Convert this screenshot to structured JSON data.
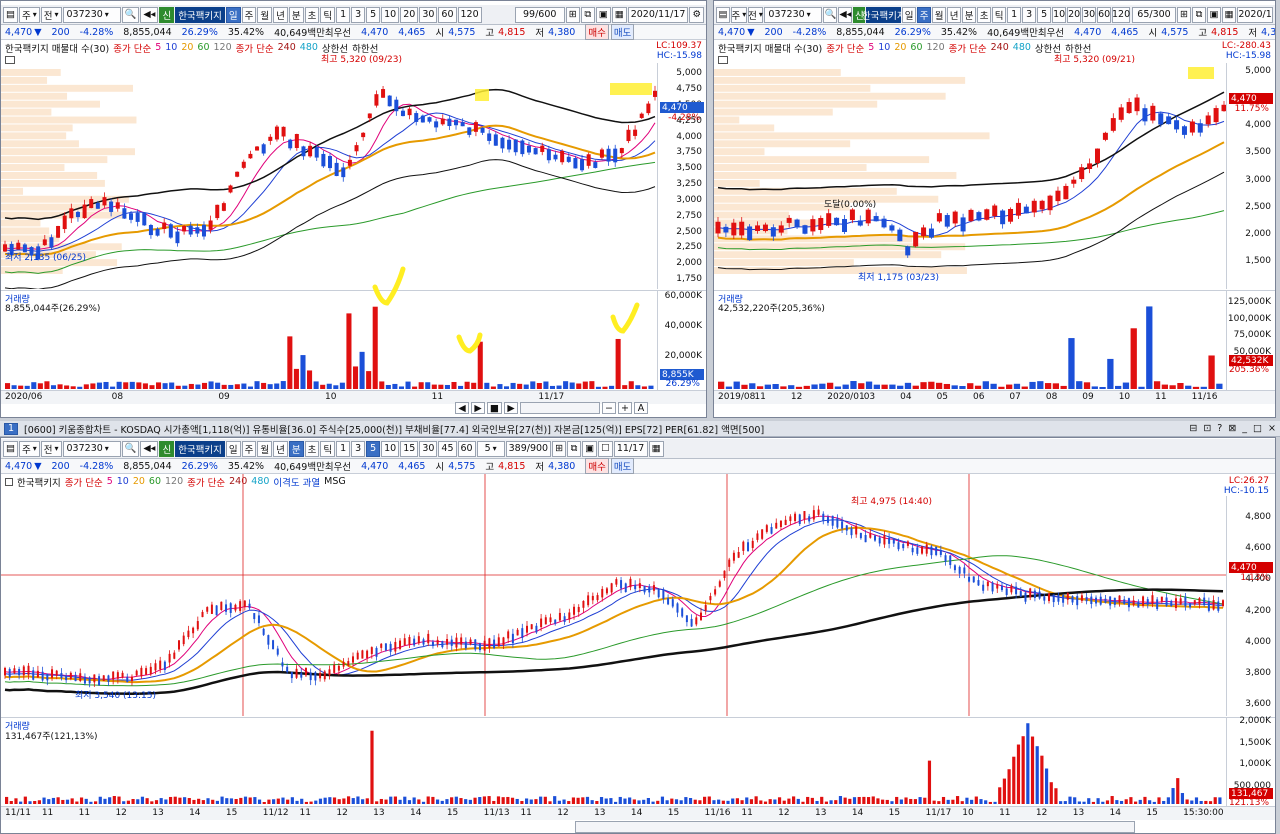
{
  "common": {
    "code": "037230",
    "name": "한국팩키지",
    "new_badge": "신",
    "quote": {
      "price": "4,470",
      "change": "200",
      "change_pct": "-4.28%",
      "volume": "8,855,044",
      "vol_ratio": "26.29%",
      "turnover": "35.42%",
      "amount": "40,649백만",
      "best_ask_label": "최우선",
      "best_ask": "4,470",
      "best_bid": "4,465",
      "open_label": "시",
      "open": "4,575",
      "high_label": "고",
      "high": "4,815",
      "low_label": "저",
      "low": "4,380",
      "buy": "매수",
      "sell": "매도"
    },
    "toolbar": {
      "mode": "주",
      "all": "전",
      "periods": [
        "일",
        "주",
        "월",
        "년",
        "분",
        "초",
        "틱"
      ],
      "nums": [
        "1",
        "3",
        "5",
        "10",
        "20",
        "30",
        "60",
        "120"
      ]
    }
  },
  "top_left": {
    "count": "99/600",
    "date": "2020/11/17",
    "legend": {
      "a": "한국팩키지 매물대 수(30)",
      "b": "종가 단순",
      "b_vals": [
        "5",
        "10",
        "20",
        "60",
        "120"
      ],
      "c": "종가 단순",
      "c_vals": [
        "240",
        "480"
      ],
      "d": "상한선",
      "e": "하한선"
    },
    "lc": "LC:109.37",
    "hc": "HC:-15.98",
    "y_ticks": [
      "5,000",
      "4,750",
      "4,500",
      "4,250",
      "4,000",
      "3,750",
      "3,500",
      "3,250",
      "3,000",
      "2,750",
      "2,500",
      "2,250",
      "2,000",
      "1,750"
    ],
    "cur_price": "4,470",
    "cur_pct": "-4.28%",
    "high_note": "최고 5,320 (09/23)",
    "low_note": "최저 2,135 (06/25)",
    "vol_title": "거래량",
    "vol_value": "8,855,044주(26.29%)",
    "vol_ticks": [
      "60,000K",
      "40,000K",
      "20,000K"
    ],
    "vol_tag": "8,855K",
    "vol_pct": "26.29%",
    "x_labels": [
      "2020/06",
      "08",
      "09",
      "10",
      "11",
      "11/17"
    ]
  },
  "top_right": {
    "count": "65/300",
    "date": "2020/1",
    "legend": {
      "a": "한국팩키지 매물대 수(30)",
      "b": "종가 단순",
      "b_vals": [
        "5",
        "10",
        "20",
        "60",
        "120"
      ],
      "c": "종가 단순",
      "c_vals": [
        "240",
        "480"
      ],
      "d": "상한선",
      "e": "하한선"
    },
    "lc": "LC:-280.43",
    "hc": "HC:-15.98",
    "y_ticks": [
      "5,000",
      "4,500",
      "4,000",
      "3,500",
      "3,000",
      "2,500",
      "2,000",
      "1,500"
    ],
    "cur_price": "4,470",
    "cur_pct": "11.75%",
    "high_note": "최고 5,320 (09/21)",
    "low_note": "최저 1,175 (03/23)",
    "mid_note": "도달(0.00%)",
    "vol_title": "거래량",
    "vol_value": "42,532,220주(205,36%)",
    "vol_ticks": [
      "125,000K",
      "100,000K",
      "75,000K",
      "50,000K"
    ],
    "vol_tag": "42,532K",
    "vol_pct": "205.36%",
    "x_labels": [
      "2019/08",
      "11",
      "12",
      "2020/01",
      "03",
      "04",
      "05",
      "06",
      "07",
      "08",
      "09",
      "10",
      "11",
      "11/16"
    ]
  },
  "bottom": {
    "menu": "[0600] 키움종합차트 - KOSDAQ 시가총액[1,118(억)] 유통비율[36.0] 주식수[25,000(천)] 부채비율[77.4] 외국인보유[27(천)] 자본금[125(억)] EPS[72] PER[61.82] 액면[500]",
    "window_icons": [
      "⊟",
      "⊡",
      "?",
      "⊠",
      "_",
      "□",
      "×"
    ],
    "tab_no": "1",
    "count": "389/900",
    "date": "11/17",
    "minute": "5",
    "periods_extra": [
      "1",
      "3",
      "5",
      "10",
      "15",
      "30",
      "45",
      "60"
    ],
    "legend": {
      "a": "한국팩키지",
      "b": "종가 단순",
      "b_vals": [
        "5",
        "10",
        "20",
        "60",
        "120"
      ],
      "c": "종가 단순",
      "c_vals": [
        "240",
        "480"
      ],
      "d": "이격도 과열",
      "e": "MSG"
    },
    "lc": "LC:26.27",
    "hc": "HC:-10.15",
    "y_ticks": [
      "4,800",
      "4,600",
      "4,400",
      "4,200",
      "4,000",
      "3,800",
      "3,600"
    ],
    "cur_price": "4,470",
    "cur_pct": "1.13%",
    "high_note": "최고 4,975 (14:40)",
    "low_note": "최저 3,540 (13:15)",
    "vol_title": "거래량",
    "vol_value": "131,467주(121,13%)",
    "vol_ticks": [
      "2,000K",
      "1,500K",
      "1,000K",
      "500,000"
    ],
    "vol_tag": "131,467",
    "vol_pct": "121.13%",
    "x_labels": [
      "11/11",
      "11",
      "11",
      "12",
      "13",
      "14",
      "15",
      "11/12",
      "11",
      "12",
      "13",
      "14",
      "15",
      "11/13",
      "11",
      "12",
      "13",
      "14",
      "15",
      "11/16",
      "11",
      "12",
      "13",
      "14",
      "15",
      "11/17",
      "10",
      "11",
      "12",
      "13",
      "14",
      "15",
      "15:30:00"
    ]
  }
}
